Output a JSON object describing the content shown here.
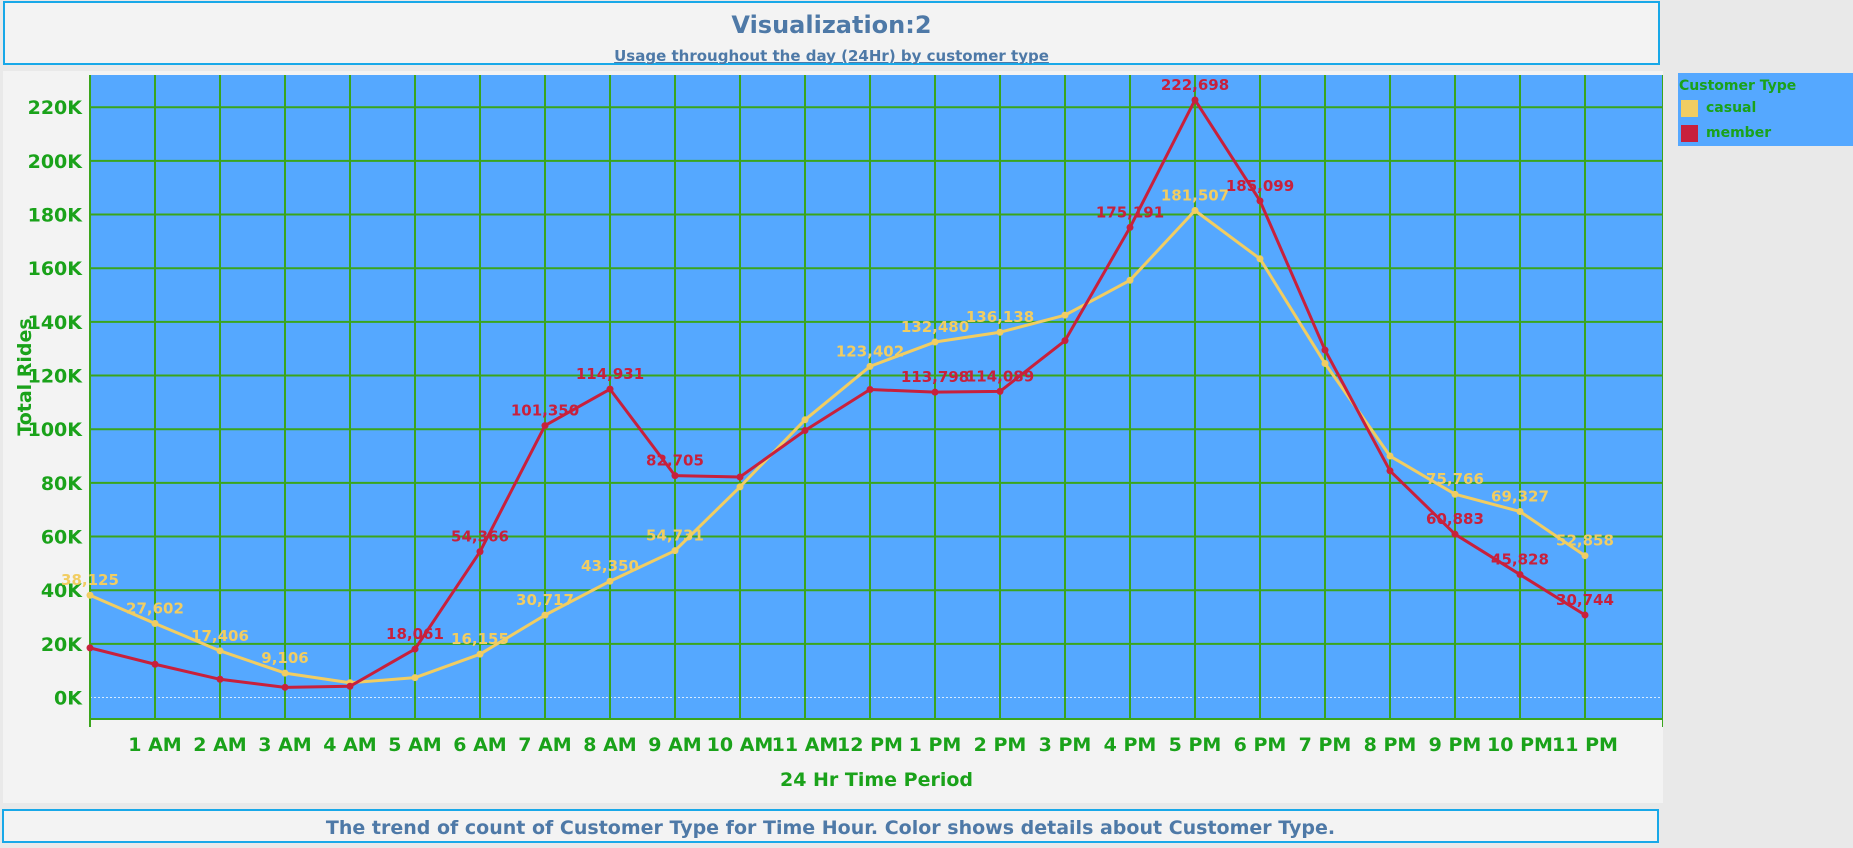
{
  "header": {
    "title": "Visualization:2",
    "subtitle": "Usage throughout the day (24Hr) by customer type"
  },
  "footer": {
    "caption": "The trend of count of Customer Type for Time Hour.  Color shows details about Customer Type."
  },
  "legend": {
    "title": "Customer Type",
    "items": [
      {
        "label": "casual",
        "color": "#f1cd62"
      },
      {
        "label": "member",
        "color": "#c8203c"
      }
    ]
  },
  "colors": {
    "plot_background": "#55a8ff",
    "grid": "#3aa51c",
    "axis_text": "#1aa21a",
    "casual": "#f1cd62",
    "member": "#c8203c",
    "title": "#4e79a7",
    "border": "#18a8e8"
  },
  "chart_data": {
    "type": "line",
    "xlabel": "24 Hr Time Period",
    "ylabel": "Total Rides",
    "ylim": [
      -8000,
      232000
    ],
    "yticks": [
      0,
      20000,
      40000,
      60000,
      80000,
      100000,
      120000,
      140000,
      160000,
      180000,
      200000,
      220000
    ],
    "ytick_labels": [
      "0K",
      "20K",
      "40K",
      "60K",
      "80K",
      "100K",
      "120K",
      "140K",
      "160K",
      "180K",
      "200K",
      "220K"
    ],
    "categories": [
      "",
      "1 AM",
      "2 AM",
      "3 AM",
      "4 AM",
      "5 AM",
      "6 AM",
      "7 AM",
      "8 AM",
      "9 AM",
      "10 AM",
      "11 AM",
      "12 PM",
      "1 PM",
      "2 PM",
      "3 PM",
      "4 PM",
      "5 PM",
      "6 PM",
      "7 PM",
      "8 PM",
      "9 PM",
      "10 PM",
      "11 PM"
    ],
    "grid": true,
    "legend_position": "right-top",
    "series": [
      {
        "name": "casual",
        "color": "#f1cd62",
        "values": [
          38125,
          27602,
          17406,
          9106,
          5500,
          7400,
          16155,
          30717,
          43350,
          54731,
          78500,
          103500,
          123402,
          132480,
          136138,
          142500,
          155500,
          181507,
          163500,
          124500,
          90000,
          75766,
          69327,
          52858
        ],
        "labels": [
          "38,125",
          "27,602",
          "17,406",
          "9,106",
          "",
          "",
          "16,155",
          "30,717",
          "43,350",
          "54,731",
          "",
          "",
          "123,402",
          "132,480",
          "136,138",
          "",
          "",
          "181,507",
          "",
          "",
          "",
          "75,766",
          "69,327",
          "52,858"
        ]
      },
      {
        "name": "member",
        "color": "#c8203c",
        "values": [
          18500,
          12400,
          6800,
          3800,
          4200,
          18061,
          54366,
          101350,
          114931,
          82705,
          82200,
          99500,
          114800,
          113798,
          114089,
          133000,
          175191,
          222698,
          185099,
          129500,
          84500,
          60883,
          45828,
          30744
        ],
        "labels": [
          "",
          "",
          "",
          "",
          "",
          "18,061",
          "54,366",
          "101,350",
          "114,931",
          "82,705",
          "",
          "",
          "",
          "113,798",
          "114,089",
          "",
          "175,191",
          "222,698",
          "185,099",
          "",
          "",
          "60,883",
          "45,828",
          "30,744"
        ]
      }
    ]
  }
}
